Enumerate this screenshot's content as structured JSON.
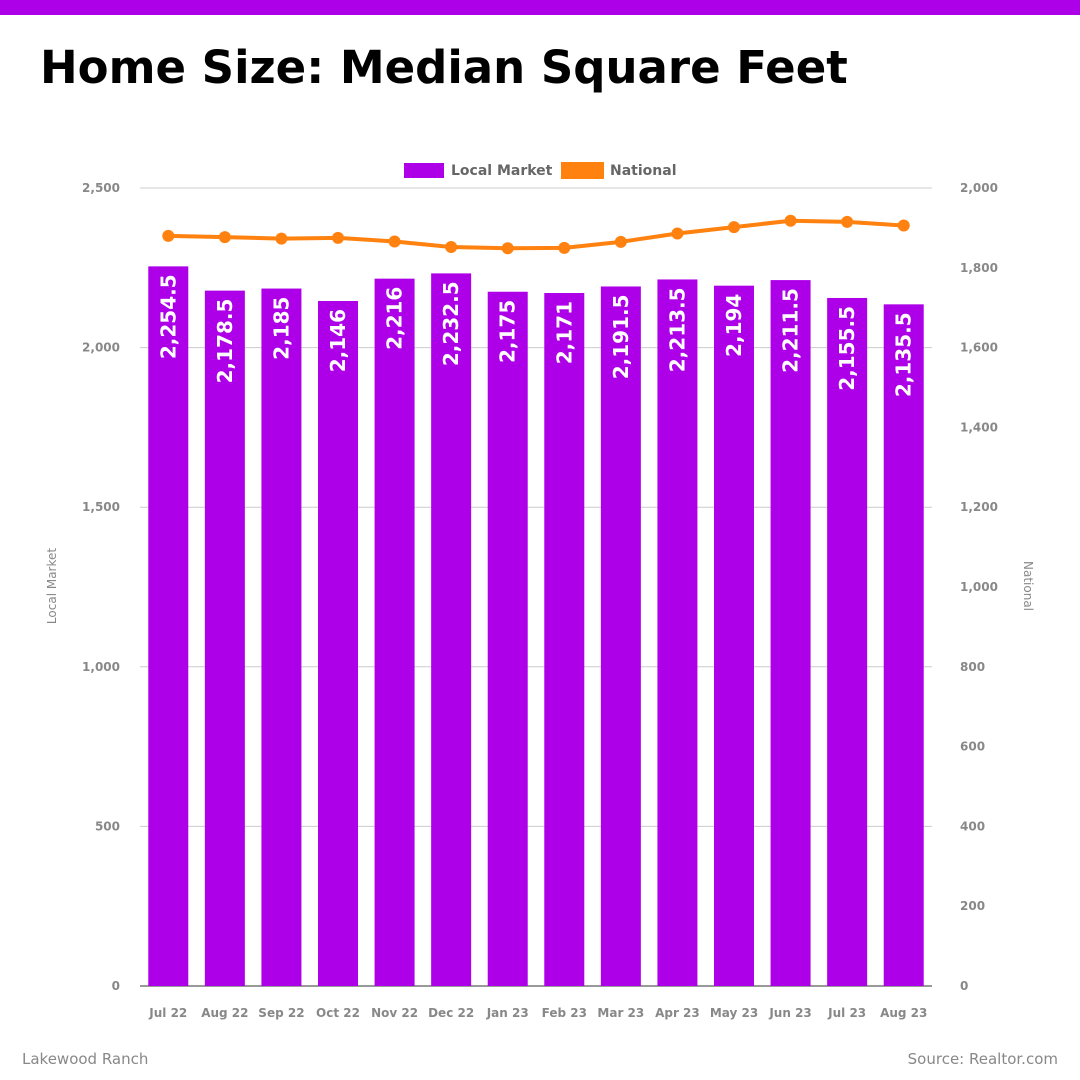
{
  "header": {
    "title": "Home Size: Median Square Feet"
  },
  "footer": {
    "location": "Lakewood Ranch",
    "source": "Source: Realtor.com"
  },
  "colors": {
    "accent": "#ad00e9",
    "local": "#ad00e9",
    "national": "#ff8210",
    "grid": "#cccccc",
    "tick": "#888888",
    "legend_text": "#666666"
  },
  "chart_data": {
    "type": "bar",
    "categories": [
      "Jul 22",
      "Aug 22",
      "Sep 22",
      "Oct 22",
      "Nov 22",
      "Dec 22",
      "Jan 23",
      "Feb 23",
      "Mar 23",
      "Apr 23",
      "May 23",
      "Jun 23",
      "Jul 23",
      "Aug 23"
    ],
    "series": [
      {
        "name": "Local Market",
        "type": "bar",
        "axis": "left",
        "values": [
          2254.5,
          2178.5,
          2185,
          2146,
          2216,
          2232.5,
          2175,
          2171,
          2191.5,
          2213.5,
          2194,
          2211.5,
          2155.5,
          2135.5
        ],
        "labels": [
          "2,254.5",
          "2,178.5",
          "2,185",
          "2,146",
          "2,216",
          "2,232.5",
          "2,175",
          "2,171",
          "2,191.5",
          "2,213.5",
          "2,194",
          "2,211.5",
          "2,155.5",
          "2,135.5"
        ]
      },
      {
        "name": "National",
        "type": "line",
        "axis": "right",
        "values": [
          1880,
          1877,
          1873,
          1875,
          1866,
          1852,
          1849,
          1850,
          1865,
          1886,
          1902,
          1918,
          1915,
          1906
        ]
      }
    ],
    "left_axis": {
      "label": "Local Market",
      "min": 0,
      "max": 2500,
      "ticks": [
        0,
        500,
        1000,
        1500,
        2000,
        2500
      ],
      "tick_labels": [
        "0",
        "500",
        "1,000",
        "1,500",
        "2,000",
        "2,500"
      ]
    },
    "right_axis": {
      "label": "National",
      "min": 0,
      "max": 2000,
      "ticks": [
        0,
        200,
        400,
        600,
        800,
        1000,
        1200,
        1400,
        1600,
        1800,
        2000
      ],
      "tick_labels": [
        "0",
        "200",
        "400",
        "600",
        "800",
        "1,000",
        "1,200",
        "1,400",
        "1,600",
        "1,800",
        "2,000"
      ]
    },
    "legend": {
      "position": "top-center",
      "entries": [
        "Local Market",
        "National"
      ]
    },
    "grid": true
  }
}
